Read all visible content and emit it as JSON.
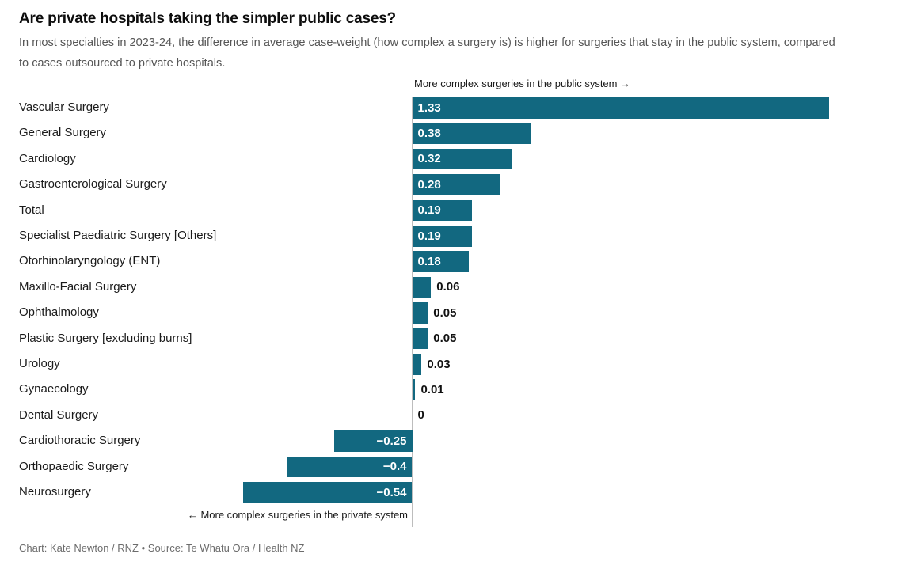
{
  "header": {
    "title": "Are private hospitals taking the simpler public cases?",
    "subtitle": "In most specialties in 2023-24, the difference in average case-weight (how complex a surgery is) is higher for surgeries that stay in the public system, compared to cases outsourced to private hospitals."
  },
  "chart_data": {
    "type": "bar",
    "orientation": "horizontal",
    "title": "Are private hospitals taking the simpler public cases?",
    "categories": [
      "Vascular Surgery",
      "General Surgery",
      "Cardiology",
      "Gastroenterological Surgery",
      "Total",
      "Specialist Paediatric Surgery [Others]",
      "Otorhinolaryngology (ENT)",
      "Maxillo-Facial Surgery",
      "Ophthalmology",
      "Plastic Surgery [excluding burns]",
      "Urology",
      "Gynaecology",
      "Dental Surgery",
      "Cardiothoracic Surgery",
      "Orthopaedic Surgery",
      "Neurosurgery"
    ],
    "values": [
      1.33,
      0.38,
      0.32,
      0.28,
      0.19,
      0.19,
      0.18,
      0.06,
      0.05,
      0.05,
      0.03,
      0.01,
      0,
      -0.25,
      -0.4,
      -0.54
    ],
    "value_labels": [
      "1.33",
      "0.38",
      "0.32",
      "0.28",
      "0.19",
      "0.19",
      "0.18",
      "0.06",
      "0.05",
      "0.05",
      "0.03",
      "0.01",
      "0",
      "−0.25",
      "−0.4",
      "−0.54"
    ],
    "xlim": [
      -0.54,
      1.33
    ],
    "grid": "off",
    "legend": "none",
    "bar_color": "#126880",
    "zero_line_color": "#bdbdbd",
    "annotations": {
      "positive": "More complex surgeries in the public system →",
      "negative": "← More complex surgeries in the private system"
    }
  },
  "footer": {
    "credit": "Chart: Kate Newton / RNZ • Source: Te Whatu Ora / Health NZ"
  }
}
